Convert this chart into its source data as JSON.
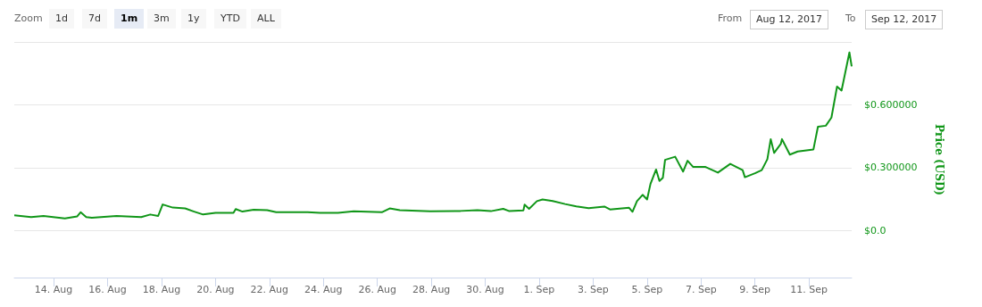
{
  "chart_data": {
    "type": "line",
    "ylabel": "Price (USD)",
    "annotations": [
      "Zoom",
      "1d",
      "7d",
      "1m",
      "3m",
      "1y",
      "YTD",
      "ALL",
      "From",
      "Aug 12, 2017",
      "To",
      "Sep 12, 2017"
    ],
    "xlim": [
      "2017-08-12T13:00",
      "2017-09-12T14:00"
    ],
    "xticks": [
      {
        "value": "2017-08-14",
        "label": "14. Aug"
      },
      {
        "value": "2017-08-16",
        "label": "16. Aug"
      },
      {
        "value": "2017-08-18",
        "label": "18. Aug"
      },
      {
        "value": "2017-08-20",
        "label": "20. Aug"
      },
      {
        "value": "2017-08-22",
        "label": "22. Aug"
      },
      {
        "value": "2017-08-24",
        "label": "24. Aug"
      },
      {
        "value": "2017-08-26",
        "label": "26. Aug"
      },
      {
        "value": "2017-08-28",
        "label": "28. Aug"
      },
      {
        "value": "2017-08-30",
        "label": "30. Aug"
      },
      {
        "value": "2017-09-01",
        "label": "1. Sep"
      },
      {
        "value": "2017-09-03",
        "label": "3. Sep"
      },
      {
        "value": "2017-09-05",
        "label": "5. Sep"
      },
      {
        "value": "2017-09-07",
        "label": "7. Sep"
      },
      {
        "value": "2017-09-09",
        "label": "9. Sep"
      },
      {
        "value": "2017-09-11",
        "label": "11. Sep"
      }
    ],
    "ylim": [
      -0.225,
      0.9
    ],
    "yticks": [
      {
        "value": 0,
        "label": "$0.0"
      },
      {
        "value": 0.3,
        "label": "$0.300000"
      },
      {
        "value": 0.6,
        "label": "$0.600000"
      },
      {
        "value": 0.9,
        "label": null
      }
    ],
    "grid": "y",
    "marker": "none",
    "line_style": "solid",
    "x": [
      "2017-08-12T13:00",
      "2017-08-13T04:00",
      "2017-08-13T15:00",
      "2017-08-14T10:00",
      "2017-08-14T21:00",
      "2017-08-15T00:00",
      "2017-08-15T05:00",
      "2017-08-15T10:00",
      "2017-08-16T08:00",
      "2017-08-17T06:00",
      "2017-08-17T14:00",
      "2017-08-17T21:00",
      "2017-08-18T01:00",
      "2017-08-18T10:00",
      "2017-08-18T21:00",
      "2017-08-19T05:00",
      "2017-08-19T13:00",
      "2017-08-20T00:00",
      "2017-08-20T16:00",
      "2017-08-20T18:00",
      "2017-08-21T00:00",
      "2017-08-21T10:00",
      "2017-08-21T22:00",
      "2017-08-22T06:00",
      "2017-08-23T10:00",
      "2017-08-23T21:00",
      "2017-08-24T13:00",
      "2017-08-25T03:00",
      "2017-08-26T04:00",
      "2017-08-26T11:00",
      "2017-08-26T20:00",
      "2017-08-27T23:00",
      "2017-08-29T02:00",
      "2017-08-29T17:00",
      "2017-08-30T05:00",
      "2017-08-30T16:00",
      "2017-08-30T21:00",
      "2017-08-31T10:00",
      "2017-08-31T11:00",
      "2017-08-31T15:00",
      "2017-08-31T22:00",
      "2017-09-01T03:00",
      "2017-09-01T12:00",
      "2017-09-01T23:00",
      "2017-09-02T09:00",
      "2017-09-02T20:00",
      "2017-09-03T10:00",
      "2017-09-03T15:00",
      "2017-09-04T08:00",
      "2017-09-04T11:00",
      "2017-09-04T15:00",
      "2017-09-04T20:00",
      "2017-09-05T00:00",
      "2017-09-05T03:00",
      "2017-09-05T08:00",
      "2017-09-05T11:00",
      "2017-09-05T14:00",
      "2017-09-05T16:00",
      "2017-09-06T01:00",
      "2017-09-06T08:00",
      "2017-09-06T12:00",
      "2017-09-06T17:00",
      "2017-09-07T04:00",
      "2017-09-07T15:00",
      "2017-09-08T02:00",
      "2017-09-08T13:00",
      "2017-09-08T15:00",
      "2017-09-09T00:00",
      "2017-09-09T06:00",
      "2017-09-09T11:00",
      "2017-09-09T14:00",
      "2017-09-09T17:00",
      "2017-09-09T23:00",
      "2017-09-10T00:00",
      "2017-09-10T07:00",
      "2017-09-10T14:00",
      "2017-09-11T04:00",
      "2017-09-11T08:00",
      "2017-09-11T15:00",
      "2017-09-11T20:00",
      "2017-09-12T01:00",
      "2017-09-12T05:00",
      "2017-09-12T12:00",
      "2017-09-12T14:00"
    ],
    "series": [
      {
        "color": "#109618",
        "values": [
          0.072,
          0.064,
          0.069,
          0.057,
          0.067,
          0.087,
          0.064,
          0.061,
          0.069,
          0.064,
          0.076,
          0.069,
          0.124,
          0.109,
          0.105,
          0.09,
          0.076,
          0.084,
          0.084,
          0.102,
          0.09,
          0.099,
          0.097,
          0.087,
          0.087,
          0.084,
          0.084,
          0.091,
          0.087,
          0.105,
          0.097,
          0.091,
          0.093,
          0.097,
          0.092,
          0.103,
          0.093,
          0.096,
          0.123,
          0.103,
          0.14,
          0.148,
          0.14,
          0.126,
          0.115,
          0.106,
          0.114,
          0.1,
          0.108,
          0.089,
          0.14,
          0.17,
          0.148,
          0.222,
          0.291,
          0.236,
          0.251,
          0.337,
          0.352,
          0.281,
          0.333,
          0.303,
          0.303,
          0.276,
          0.318,
          0.288,
          0.254,
          0.273,
          0.288,
          0.34,
          0.436,
          0.37,
          0.414,
          0.436,
          0.362,
          0.377,
          0.387,
          0.495,
          0.5,
          0.539,
          0.687,
          0.668,
          0.85,
          0.783
        ]
      }
    ]
  }
}
